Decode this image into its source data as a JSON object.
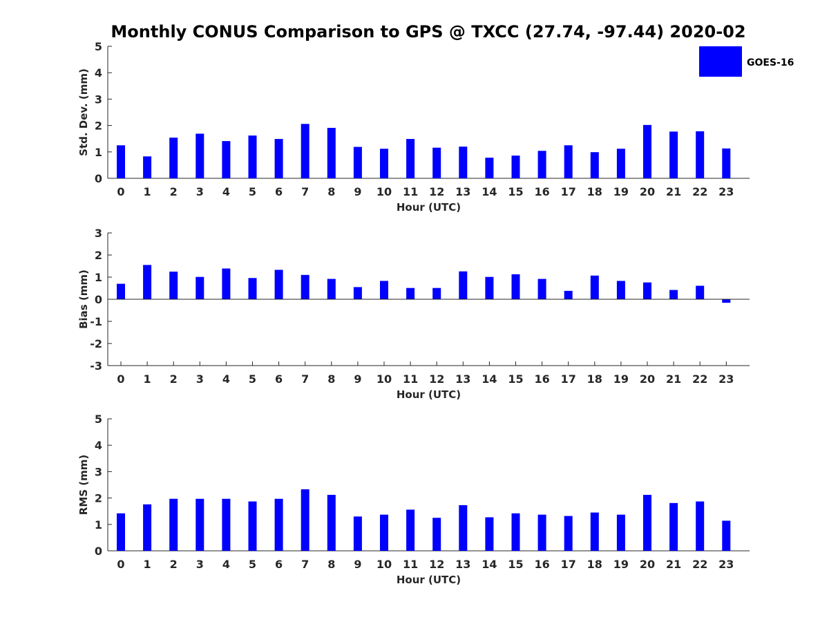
{
  "colors": {
    "bar": "#0000ff",
    "axis": "#262626",
    "background": "#ffffff"
  },
  "legend": {
    "label": "GOES-16",
    "placement": "top-right"
  },
  "chart_data": [
    {
      "type": "bar",
      "title": "Monthly CONUS Comparison to GPS @ TXCC (27.74, -97.44) 2020-02",
      "xlabel": "Hour (UTC)",
      "ylabel": "Std. Dev. (mm)",
      "ylim": [
        0,
        5
      ],
      "yticks": [
        0,
        1,
        2,
        3,
        4,
        5
      ],
      "categories": [
        "0",
        "1",
        "2",
        "3",
        "4",
        "5",
        "6",
        "7",
        "8",
        "9",
        "10",
        "11",
        "12",
        "13",
        "14",
        "15",
        "16",
        "17",
        "18",
        "19",
        "20",
        "21",
        "22",
        "23"
      ],
      "series": [
        {
          "name": "GOES-16",
          "values": [
            1.25,
            0.83,
            1.54,
            1.69,
            1.41,
            1.62,
            1.49,
            2.06,
            1.91,
            1.19,
            1.12,
            1.49,
            1.16,
            1.2,
            0.78,
            0.86,
            1.04,
            1.25,
            0.99,
            1.12,
            2.02,
            1.77,
            1.78,
            1.13
          ]
        }
      ],
      "grid": false
    },
    {
      "type": "bar",
      "xlabel": "Hour (UTC)",
      "ylabel": "Bias (mm)",
      "ylim": [
        -3,
        3
      ],
      "yticks": [
        -3,
        -2,
        -1,
        0,
        1,
        2,
        3
      ],
      "categories": [
        "0",
        "1",
        "2",
        "3",
        "4",
        "5",
        "6",
        "7",
        "8",
        "9",
        "10",
        "11",
        "12",
        "13",
        "14",
        "15",
        "16",
        "17",
        "18",
        "19",
        "20",
        "21",
        "22",
        "23"
      ],
      "series": [
        {
          "name": "GOES-16",
          "values": [
            0.7,
            1.55,
            1.25,
            1.01,
            1.39,
            0.96,
            1.33,
            1.1,
            0.92,
            0.55,
            0.83,
            0.51,
            0.51,
            1.26,
            1.01,
            1.13,
            0.92,
            0.38,
            1.07,
            0.83,
            0.76,
            0.42,
            0.61,
            -0.16
          ]
        }
      ],
      "grid": false
    },
    {
      "type": "bar",
      "xlabel": "Hour (UTC)",
      "ylabel": "RMS (mm)",
      "ylim": [
        0,
        5
      ],
      "yticks": [
        0,
        1,
        2,
        3,
        4,
        5
      ],
      "categories": [
        "0",
        "1",
        "2",
        "3",
        "4",
        "5",
        "6",
        "7",
        "8",
        "9",
        "10",
        "11",
        "12",
        "13",
        "14",
        "15",
        "16",
        "17",
        "18",
        "19",
        "20",
        "21",
        "22",
        "23"
      ],
      "series": [
        {
          "name": "GOES-16",
          "values": [
            1.42,
            1.76,
            1.97,
            1.97,
            1.97,
            1.87,
            1.97,
            2.33,
            2.12,
            1.3,
            1.37,
            1.56,
            1.25,
            1.73,
            1.27,
            1.42,
            1.37,
            1.32,
            1.45,
            1.37,
            2.12,
            1.81,
            1.87,
            1.14
          ]
        }
      ],
      "grid": false
    }
  ]
}
